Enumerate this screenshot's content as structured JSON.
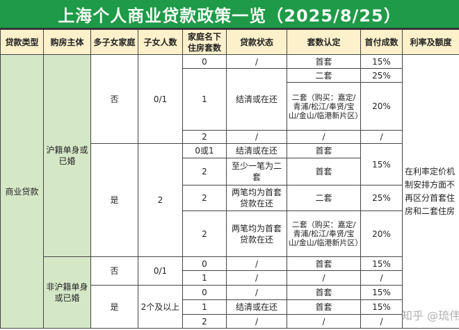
{
  "title": "上海个人商业贷款政策一览（2025/8/25）",
  "colors": {
    "title_bg": "#1f9a48",
    "header_bg": "#fdf1cb",
    "group_bg": "#d4e8c7"
  },
  "headers": [
    "贷款类型",
    "购房主体",
    "多子女家庭",
    "子女人数",
    "家庭名下住房套数",
    "贷款状态",
    "套数认定",
    "首付成数",
    "利率及额度"
  ],
  "rows": [
    [
      {
        "t": "商业贷款",
        "rs": 13,
        "c": "green"
      },
      {
        "t": "沪籍单身或已婚",
        "rs": 8,
        "c": "green"
      },
      {
        "t": "否",
        "rs": 4
      },
      {
        "t": "0/1",
        "rs": 4
      },
      {
        "t": "0"
      },
      {
        "t": "/"
      },
      {
        "t": "首套"
      },
      {
        "t": "15%"
      },
      {
        "t": "在利率定价机制安排方面不再区分首套住房和二套住房",
        "rs": 13,
        "c": "rate"
      }
    ],
    [
      {
        "t": "1",
        "rs": 2
      },
      {
        "t": "结清或在还",
        "rs": 2
      },
      {
        "t": "二套"
      },
      {
        "t": "25%"
      }
    ],
    [
      {
        "t": "二套（购买：嘉定/青浦/松江/奉贤/宝山/金山/临港新片区）",
        "c": "note"
      },
      {
        "t": "20%"
      }
    ],
    [
      {
        "t": "2"
      },
      {
        "t": "/"
      },
      {
        "t": "/"
      },
      {
        "t": "/"
      }
    ],
    [
      {
        "t": "是",
        "rs": 4
      },
      {
        "t": "2",
        "rs": 4
      },
      {
        "t": "0或1"
      },
      {
        "t": "结清或在还"
      },
      {
        "t": "首套"
      },
      {
        "t": "15%",
        "rs": 2
      }
    ],
    [
      {
        "t": "2"
      },
      {
        "t": "至少一笔为二套"
      },
      {
        "t": "首套"
      }
    ],
    [
      {
        "t": "2"
      },
      {
        "t": "两笔均为首套贷款在还"
      },
      {
        "t": "二套"
      },
      {
        "t": "25%"
      }
    ],
    [
      {
        "t": "2"
      },
      {
        "t": "两笔均为首套贷款在还"
      },
      {
        "t": "二套（购买：嘉定/青浦/松江/奉贤/宝山/金山/临港新片区）",
        "c": "note"
      },
      {
        "t": "20%"
      }
    ],
    [
      {
        "t": "非沪籍单身或已婚",
        "rs": 5,
        "c": "green"
      },
      {
        "t": "否",
        "rs": 2
      },
      {
        "t": "0/1",
        "rs": 2
      },
      {
        "t": "0"
      },
      {
        "t": "/"
      },
      {
        "t": "首套"
      },
      {
        "t": "15%"
      }
    ],
    [
      {
        "t": "1"
      },
      {
        "t": "/"
      },
      {
        "t": "/"
      },
      {
        "t": "/"
      }
    ],
    [
      {
        "t": "是",
        "rs": 3
      },
      {
        "t": "2个及以上",
        "rs": 3
      },
      {
        "t": "0"
      },
      {
        "t": "/"
      },
      {
        "t": "首套"
      },
      {
        "t": "15%"
      }
    ],
    [
      {
        "t": "1"
      },
      {
        "t": "结清或在还"
      },
      {
        "t": "首套"
      },
      {
        "t": "15%"
      }
    ],
    [
      {
        "t": "2"
      },
      {
        "t": "/"
      },
      {
        "t": "/"
      },
      {
        "t": "/"
      }
    ]
  ],
  "watermark": "知乎 @琉伟"
}
